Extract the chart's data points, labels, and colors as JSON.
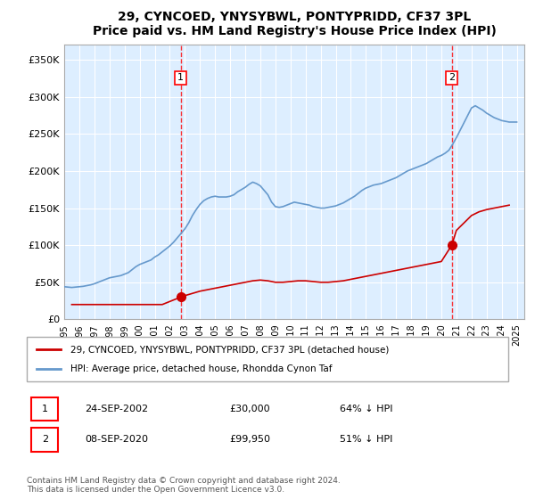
{
  "title": "29, CYNCOED, YNYSYBWL, PONTYPRIDD, CF37 3PL",
  "subtitle": "Price paid vs. HM Land Registry's House Price Index (HPI)",
  "ylabel_ticks": [
    "£0",
    "£50K",
    "£100K",
    "£150K",
    "£200K",
    "£250K",
    "£300K",
    "£350K"
  ],
  "ytick_values": [
    0,
    50000,
    100000,
    150000,
    200000,
    250000,
    300000,
    350000
  ],
  "ylim": [
    0,
    370000
  ],
  "xlim_start": 1995.0,
  "xlim_end": 2025.5,
  "hpi_years": [
    1995.0,
    1995.25,
    1995.5,
    1995.75,
    1996.0,
    1996.25,
    1996.5,
    1996.75,
    1997.0,
    1997.25,
    1997.5,
    1997.75,
    1998.0,
    1998.25,
    1998.5,
    1998.75,
    1999.0,
    1999.25,
    1999.5,
    1999.75,
    2000.0,
    2000.25,
    2000.5,
    2000.75,
    2001.0,
    2001.25,
    2001.5,
    2001.75,
    2002.0,
    2002.25,
    2002.5,
    2002.75,
    2003.0,
    2003.25,
    2003.5,
    2003.75,
    2004.0,
    2004.25,
    2004.5,
    2004.75,
    2005.0,
    2005.25,
    2005.5,
    2005.75,
    2006.0,
    2006.25,
    2006.5,
    2006.75,
    2007.0,
    2007.25,
    2007.5,
    2007.75,
    2008.0,
    2008.25,
    2008.5,
    2008.75,
    2009.0,
    2009.25,
    2009.5,
    2009.75,
    2010.0,
    2010.25,
    2010.5,
    2010.75,
    2011.0,
    2011.25,
    2011.5,
    2011.75,
    2012.0,
    2012.25,
    2012.5,
    2012.75,
    2013.0,
    2013.25,
    2013.5,
    2013.75,
    2014.0,
    2014.25,
    2014.5,
    2014.75,
    2015.0,
    2015.25,
    2015.5,
    2015.75,
    2016.0,
    2016.25,
    2016.5,
    2016.75,
    2017.0,
    2017.25,
    2017.5,
    2017.75,
    2018.0,
    2018.25,
    2018.5,
    2018.75,
    2019.0,
    2019.25,
    2019.5,
    2019.75,
    2020.0,
    2020.25,
    2020.5,
    2020.75,
    2021.0,
    2021.25,
    2021.5,
    2021.75,
    2022.0,
    2022.25,
    2022.5,
    2022.75,
    2023.0,
    2023.25,
    2023.5,
    2023.75,
    2024.0,
    2024.25,
    2024.5,
    2024.75,
    2025.0
  ],
  "hpi_values": [
    44000,
    43500,
    43000,
    43500,
    44000,
    44500,
    45500,
    46500,
    48000,
    50000,
    52000,
    54000,
    56000,
    57000,
    58000,
    59000,
    61000,
    63000,
    67000,
    71000,
    74000,
    76000,
    78000,
    80000,
    84000,
    87000,
    91000,
    95000,
    99000,
    104000,
    110000,
    116000,
    122000,
    130000,
    140000,
    148000,
    155000,
    160000,
    163000,
    165000,
    166000,
    165000,
    165000,
    165000,
    166000,
    168000,
    172000,
    175000,
    178000,
    182000,
    185000,
    183000,
    180000,
    174000,
    168000,
    158000,
    152000,
    151000,
    152000,
    154000,
    156000,
    158000,
    157000,
    156000,
    155000,
    154000,
    152000,
    151000,
    150000,
    150000,
    151000,
    152000,
    153000,
    155000,
    157000,
    160000,
    163000,
    166000,
    170000,
    174000,
    177000,
    179000,
    181000,
    182000,
    183000,
    185000,
    187000,
    189000,
    191000,
    194000,
    197000,
    200000,
    202000,
    204000,
    206000,
    208000,
    210000,
    213000,
    216000,
    219000,
    221000,
    224000,
    228000,
    236000,
    245000,
    255000,
    265000,
    275000,
    285000,
    288000,
    285000,
    282000,
    278000,
    275000,
    272000,
    270000,
    268000,
    267000,
    266000,
    266000,
    266000
  ],
  "price_paid_years": [
    1995.5,
    1996.0,
    1996.5,
    1997.0,
    1997.5,
    1998.0,
    1998.5,
    1999.0,
    1999.5,
    2000.0,
    2000.5,
    2001.0,
    2001.5,
    2002.72,
    2003.0,
    2003.5,
    2004.0,
    2004.5,
    2005.0,
    2005.5,
    2006.0,
    2006.5,
    2007.0,
    2007.5,
    2008.0,
    2008.5,
    2009.0,
    2009.5,
    2010.0,
    2010.5,
    2011.0,
    2011.5,
    2012.0,
    2012.5,
    2013.0,
    2013.5,
    2014.0,
    2014.5,
    2015.0,
    2015.5,
    2016.0,
    2016.5,
    2017.0,
    2017.5,
    2018.0,
    2018.5,
    2019.0,
    2019.5,
    2020.0,
    2020.69,
    2021.0,
    2021.5,
    2022.0,
    2022.5,
    2023.0,
    2023.5,
    2024.0,
    2024.5
  ],
  "price_paid_values": [
    20000,
    20000,
    20000,
    20000,
    20000,
    20000,
    20000,
    20000,
    20000,
    20000,
    20000,
    20000,
    20000,
    30000,
    32000,
    35000,
    38000,
    40000,
    42000,
    44000,
    46000,
    48000,
    50000,
    52000,
    53000,
    52000,
    50000,
    50000,
    51000,
    52000,
    52000,
    51000,
    50000,
    50000,
    51000,
    52000,
    54000,
    56000,
    58000,
    60000,
    62000,
    64000,
    66000,
    68000,
    70000,
    72000,
    74000,
    76000,
    78000,
    99950,
    120000,
    130000,
    140000,
    145000,
    148000,
    150000,
    152000,
    154000
  ],
  "transaction1_year": 2002.72,
  "transaction1_value": 30000,
  "transaction1_label": "1",
  "transaction2_year": 2020.69,
  "transaction2_value": 99950,
  "transaction2_label": "2",
  "line_color_red": "#cc0000",
  "line_color_blue": "#6699cc",
  "marker_color_red": "#cc0000",
  "bg_color": "#ddeeff",
  "grid_color": "#ffffff",
  "legend_label_red": "29, CYNCOED, YNYSYBWL, PONTYPRIDD, CF37 3PL (detached house)",
  "legend_label_blue": "HPI: Average price, detached house, Rhondda Cynon Taf",
  "annotation1_label": "1",
  "annotation1_date": "24-SEP-2002",
  "annotation1_price": "£30,000",
  "annotation1_hpi": "64% ↓ HPI",
  "annotation2_label": "2",
  "annotation2_date": "08-SEP-2020",
  "annotation2_price": "£99,950",
  "annotation2_hpi": "51% ↓ HPI",
  "footer": "Contains HM Land Registry data © Crown copyright and database right 2024.\nThis data is licensed under the Open Government Licence v3.0.",
  "xtick_years": [
    1995,
    1996,
    1997,
    1998,
    1999,
    2000,
    2001,
    2002,
    2003,
    2004,
    2005,
    2006,
    2007,
    2008,
    2009,
    2010,
    2011,
    2012,
    2013,
    2014,
    2015,
    2016,
    2017,
    2018,
    2019,
    2020,
    2021,
    2022,
    2023,
    2024,
    2025
  ]
}
